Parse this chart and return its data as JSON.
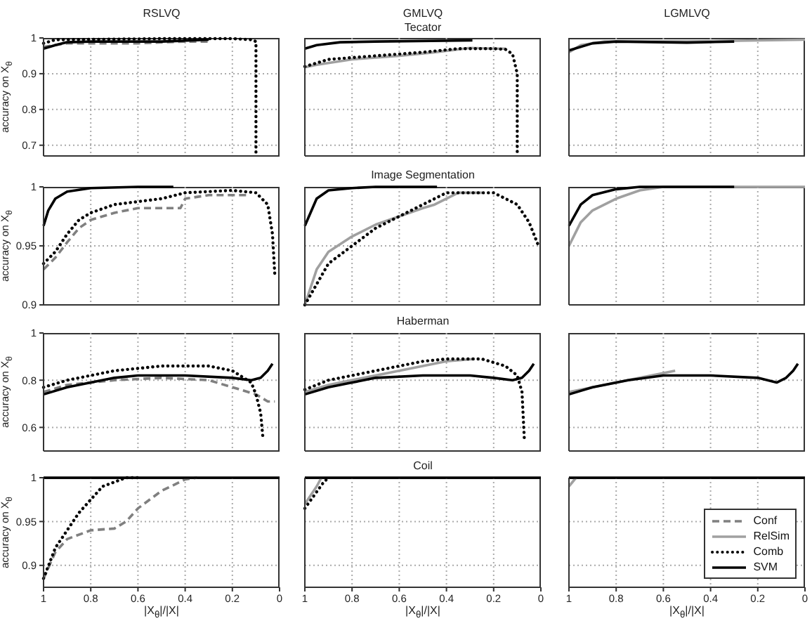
{
  "chart_data": [
    {
      "type": "line",
      "title": "RSLVQ",
      "ylabel": "accuracy on X$_{θ}$",
      "xlim": [
        1,
        0
      ],
      "xticks": [
        1,
        0.8,
        0.6,
        0.4,
        0.2,
        0
      ],
      "ylim": [
        0.67,
        1
      ],
      "yticks": [
        0.7,
        0.8,
        0.9,
        1
      ],
      "grid": true,
      "tick_labels": "y",
      "series": [
        {
          "color": "#808080",
          "line_style": "dashed",
          "x": [
            1,
            0.9,
            0.6,
            0.4,
            0.3
          ],
          "values": [
            0.975,
            0.985,
            0.985,
            0.99,
            0.99
          ]
        },
        {
          "color": "#000000",
          "line_style": "dotted",
          "x": [
            1,
            0.95,
            0.5,
            0.2,
            0.12,
            0.1,
            0.1
          ],
          "values": [
            0.985,
            0.995,
            0.998,
            0.998,
            0.995,
            0.99,
            0.67
          ]
        },
        {
          "color": "#000000",
          "line_style": "solid",
          "x": [
            1,
            0.95,
            0.9,
            0.8,
            0.5,
            0.3
          ],
          "values": [
            0.97,
            0.98,
            0.988,
            0.99,
            0.99,
            0.995
          ]
        }
      ]
    },
    {
      "type": "line",
      "title": "GMLVQ",
      "subtitle": "Tecator",
      "xlim": [
        1,
        0
      ],
      "xticks": [
        1,
        0.8,
        0.6,
        0.4,
        0.2,
        0
      ],
      "ylim": [
        0.67,
        1
      ],
      "yticks": [
        0.7,
        0.8,
        0.9,
        1
      ],
      "grid": true,
      "tick_labels": false,
      "series": [
        {
          "color": "#a0a0a0",
          "line_style": "solid",
          "x": [
            1,
            0.95,
            0.8,
            0.6,
            0.45,
            0.3,
            0.2,
            0.15
          ],
          "values": [
            0.918,
            0.925,
            0.94,
            0.95,
            0.96,
            0.972,
            0.97,
            0.97
          ]
        },
        {
          "color": "#000000",
          "line_style": "dotted",
          "x": [
            1,
            0.9,
            0.7,
            0.5,
            0.35,
            0.2,
            0.15,
            0.12,
            0.1,
            0.1
          ],
          "values": [
            0.92,
            0.94,
            0.95,
            0.96,
            0.97,
            0.97,
            0.968,
            0.955,
            0.9,
            0.67
          ]
        },
        {
          "color": "#000000",
          "line_style": "solid",
          "x": [
            1,
            0.95,
            0.85,
            0.7,
            0.29
          ],
          "values": [
            0.97,
            0.98,
            0.988,
            0.99,
            0.993
          ]
        }
      ]
    },
    {
      "type": "line",
      "title": "LGMLVQ",
      "xlim": [
        1,
        0
      ],
      "xticks": [
        1,
        0.8,
        0.6,
        0.4,
        0.2,
        0
      ],
      "ylim": [
        0.67,
        1
      ],
      "yticks": [
        0.7,
        0.8,
        0.9,
        1
      ],
      "grid": true,
      "tick_labels": false,
      "series": [
        {
          "color": "#a0a0a0",
          "line_style": "solid",
          "x": [
            1,
            0.95,
            0.85,
            0.5,
            0
          ],
          "values": [
            0.96,
            0.98,
            0.99,
            0.99,
            0.995
          ]
        },
        {
          "color": "#000000",
          "line_style": "solid",
          "x": [
            1,
            0.9,
            0.8,
            0.5,
            0.3
          ],
          "values": [
            0.965,
            0.985,
            0.99,
            0.987,
            0.99
          ]
        }
      ]
    },
    {
      "type": "line",
      "ylabel": "accuracy on X$_{θ}$",
      "xlim": [
        1,
        0
      ],
      "xticks": [
        1,
        0.8,
        0.6,
        0.4,
        0.2,
        0
      ],
      "ylim": [
        0.9,
        1
      ],
      "yticks": [
        0.9,
        0.95,
        1
      ],
      "grid": true,
      "tick_labels": "y",
      "series": [
        {
          "color": "#808080",
          "line_style": "dashed",
          "x": [
            1,
            0.95,
            0.9,
            0.85,
            0.8,
            0.7,
            0.6,
            0.42,
            0.4,
            0.3,
            0.14
          ],
          "values": [
            0.93,
            0.94,
            0.953,
            0.965,
            0.972,
            0.978,
            0.982,
            0.982,
            0.99,
            0.993,
            0.993
          ]
        },
        {
          "color": "#000000",
          "line_style": "dotted",
          "x": [
            1,
            0.95,
            0.9,
            0.85,
            0.8,
            0.7,
            0.5,
            0.4,
            0.2,
            0.1,
            0.05,
            0.03,
            0.02
          ],
          "values": [
            0.935,
            0.945,
            0.96,
            0.972,
            0.978,
            0.985,
            0.99,
            0.995,
            0.997,
            0.995,
            0.985,
            0.96,
            0.925
          ]
        },
        {
          "color": "#000000",
          "line_style": "solid",
          "x": [
            1,
            0.98,
            0.95,
            0.9,
            0.8,
            0.6,
            0.45
          ],
          "values": [
            0.967,
            0.98,
            0.99,
            0.996,
            0.999,
            1,
            1
          ]
        }
      ]
    },
    {
      "type": "line",
      "title": "Image Segmentation",
      "xlim": [
        1,
        0
      ],
      "xticks": [
        1,
        0.8,
        0.6,
        0.4,
        0.2,
        0
      ],
      "ylim": [
        0.9,
        1
      ],
      "yticks": [
        0.9,
        0.95,
        1
      ],
      "grid": true,
      "tick_labels": false,
      "series": [
        {
          "color": "#a0a0a0",
          "line_style": "solid",
          "x": [
            1,
            0.95,
            0.9,
            0.8,
            0.7,
            0.6,
            0.5,
            0.45,
            0.35,
            0.25
          ],
          "values": [
            0.9,
            0.93,
            0.945,
            0.958,
            0.968,
            0.975,
            0.982,
            0.985,
            0.995,
            0.995
          ]
        },
        {
          "color": "#000000",
          "line_style": "dotted",
          "x": [
            1,
            0.9,
            0.8,
            0.7,
            0.6,
            0.5,
            0.4,
            0.2,
            0.1,
            0.05,
            0.01
          ],
          "values": [
            0.9,
            0.935,
            0.95,
            0.965,
            0.975,
            0.985,
            0.995,
            0.995,
            0.985,
            0.97,
            0.95
          ]
        },
        {
          "color": "#000000",
          "line_style": "solid",
          "x": [
            1,
            0.95,
            0.9,
            0.8,
            0.7,
            0.44
          ],
          "values": [
            0.967,
            0.99,
            0.997,
            0.999,
            1,
            1
          ]
        }
      ]
    },
    {
      "type": "line",
      "xlim": [
        1,
        0
      ],
      "xticks": [
        1,
        0.8,
        0.6,
        0.4,
        0.2,
        0
      ],
      "ylim": [
        0.9,
        1
      ],
      "yticks": [
        0.9,
        0.95,
        1
      ],
      "grid": true,
      "tick_labels": false,
      "series": [
        {
          "color": "#a0a0a0",
          "line_style": "solid",
          "x": [
            1,
            0.95,
            0.9,
            0.8,
            0.7,
            0.6,
            0
          ],
          "values": [
            0.95,
            0.97,
            0.98,
            0.99,
            0.997,
            1,
            1
          ]
        },
        {
          "color": "#000000",
          "line_style": "solid",
          "x": [
            1,
            0.95,
            0.9,
            0.8,
            0.7,
            0.3
          ],
          "values": [
            0.967,
            0.985,
            0.993,
            0.998,
            1,
            1
          ]
        }
      ]
    },
    {
      "type": "line",
      "ylabel": "accuracy on X$_{θ}$",
      "xlim": [
        1,
        0
      ],
      "xticks": [
        1,
        0.8,
        0.6,
        0.4,
        0.2,
        0
      ],
      "ylim": [
        0.5,
        1
      ],
      "yticks": [
        0.6,
        0.8,
        1
      ],
      "grid": true,
      "tick_labels": "y",
      "series": [
        {
          "color": "#808080",
          "line_style": "dashed",
          "x": [
            1,
            0.9,
            0.7,
            0.5,
            0.3,
            0.2,
            0.1,
            0.05,
            0.02
          ],
          "values": [
            0.75,
            0.78,
            0.8,
            0.81,
            0.8,
            0.77,
            0.74,
            0.71,
            0.71
          ]
        },
        {
          "color": "#000000",
          "line_style": "dotted",
          "x": [
            1,
            0.9,
            0.7,
            0.5,
            0.3,
            0.2,
            0.12,
            0.1,
            0.08,
            0.07
          ],
          "values": [
            0.77,
            0.8,
            0.84,
            0.86,
            0.86,
            0.84,
            0.79,
            0.74,
            0.66,
            0.55
          ]
        },
        {
          "color": "#000000",
          "line_style": "solid",
          "x": [
            1,
            0.9,
            0.8,
            0.7,
            0.6,
            0.4,
            0.2,
            0.12,
            0.08,
            0.05,
            0.03
          ],
          "values": [
            0.74,
            0.77,
            0.79,
            0.81,
            0.82,
            0.82,
            0.81,
            0.8,
            0.81,
            0.84,
            0.87
          ]
        }
      ]
    },
    {
      "type": "line",
      "title": "Haberman",
      "xlim": [
        1,
        0
      ],
      "xticks": [
        1,
        0.8,
        0.6,
        0.4,
        0.2,
        0
      ],
      "ylim": [
        0.5,
        1
      ],
      "yticks": [
        0.6,
        0.8,
        1
      ],
      "grid": true,
      "tick_labels": false,
      "series": [
        {
          "color": "#a0a0a0",
          "line_style": "solid",
          "x": [
            1,
            0.9,
            0.7,
            0.5,
            0.4,
            0.28
          ],
          "values": [
            0.75,
            0.78,
            0.82,
            0.86,
            0.88,
            0.89
          ]
        },
        {
          "color": "#000000",
          "line_style": "dotted",
          "x": [
            1,
            0.9,
            0.7,
            0.5,
            0.4,
            0.25,
            0.15,
            0.1,
            0.08,
            0.07
          ],
          "values": [
            0.76,
            0.8,
            0.84,
            0.88,
            0.89,
            0.89,
            0.86,
            0.82,
            0.75,
            0.55
          ]
        },
        {
          "color": "#000000",
          "line_style": "solid",
          "x": [
            1,
            0.9,
            0.8,
            0.7,
            0.5,
            0.3,
            0.2,
            0.12,
            0.08,
            0.05,
            0.03
          ],
          "values": [
            0.74,
            0.77,
            0.79,
            0.81,
            0.82,
            0.82,
            0.81,
            0.8,
            0.81,
            0.84,
            0.87
          ]
        }
      ]
    },
    {
      "type": "line",
      "xlim": [
        1,
        0
      ],
      "xticks": [
        1,
        0.8,
        0.6,
        0.4,
        0.2,
        0
      ],
      "ylim": [
        0.5,
        1
      ],
      "yticks": [
        0.6,
        0.8,
        1
      ],
      "grid": true,
      "tick_labels": false,
      "series": [
        {
          "color": "#a0a0a0",
          "line_style": "solid",
          "x": [
            1,
            0.85,
            0.7,
            0.55
          ],
          "values": [
            0.75,
            0.78,
            0.81,
            0.84
          ]
        },
        {
          "color": "#000000",
          "line_style": "solid",
          "x": [
            1,
            0.9,
            0.75,
            0.6,
            0.4,
            0.2,
            0.12,
            0.08,
            0.05,
            0.03
          ],
          "values": [
            0.74,
            0.77,
            0.8,
            0.82,
            0.82,
            0.81,
            0.79,
            0.81,
            0.84,
            0.87
          ]
        }
      ]
    },
    {
      "type": "line",
      "ylabel": "accuracy on X$_{θ}$",
      "xlabel": "|X$_{θ}$|/|X|",
      "xlim": [
        1,
        0
      ],
      "xticks": [
        1,
        0.8,
        0.6,
        0.4,
        0.2,
        0
      ],
      "ylim": [
        0.875,
        1
      ],
      "yticks": [
        0.9,
        0.95,
        1
      ],
      "grid": true,
      "series": [
        {
          "color": "#808080",
          "line_style": "dashed",
          "x": [
            1,
            0.95,
            0.9,
            0.8,
            0.7,
            0.65,
            0.6,
            0.5,
            0.4,
            0.35
          ],
          "values": [
            0.885,
            0.915,
            0.93,
            0.94,
            0.942,
            0.95,
            0.965,
            0.985,
            0.998,
            1
          ]
        },
        {
          "color": "#000000",
          "line_style": "dotted",
          "x": [
            1,
            0.95,
            0.9,
            0.85,
            0.8,
            0.75,
            0.65,
            0.6
          ],
          "values": [
            0.885,
            0.92,
            0.94,
            0.96,
            0.975,
            0.99,
            1,
            1
          ]
        },
        {
          "color": "#000000",
          "line_style": "solid",
          "x": [
            1,
            0
          ],
          "values": [
            1,
            1
          ]
        }
      ]
    },
    {
      "type": "line",
      "title": "Coil",
      "xlabel": "|X$_{θ}$|/|X|",
      "xlim": [
        1,
        0
      ],
      "xticks": [
        1,
        0.8,
        0.6,
        0.4,
        0.2,
        0
      ],
      "ylim": [
        0.875,
        1
      ],
      "yticks": [
        0.9,
        0.95,
        1
      ],
      "grid": true,
      "tick_labels": "x",
      "series": [
        {
          "color": "#a0a0a0",
          "line_style": "solid",
          "x": [
            1,
            0.95,
            0.93
          ],
          "values": [
            0.97,
            0.99,
            1
          ]
        },
        {
          "color": "#000000",
          "line_style": "dotted",
          "x": [
            1,
            0.96,
            0.92,
            0.9
          ],
          "values": [
            0.965,
            0.98,
            0.995,
            1
          ]
        },
        {
          "color": "#000000",
          "line_style": "solid",
          "x": [
            1,
            0
          ],
          "values": [
            1,
            1
          ]
        }
      ]
    },
    {
      "type": "line",
      "xlabel": "|X$_{θ}$|/|X|",
      "xlim": [
        1,
        0
      ],
      "xticks": [
        1,
        0.8,
        0.6,
        0.4,
        0.2,
        0
      ],
      "ylim": [
        0.875,
        1
      ],
      "yticks": [
        0.9,
        0.95,
        1
      ],
      "grid": true,
      "tick_labels": "x",
      "legend": "bottom right",
      "series": [
        {
          "name": "Conf",
          "color": "#808080",
          "line_style": "dashed"
        },
        {
          "name": "RelSim",
          "color": "#a0a0a0",
          "line_style": "solid",
          "x": [
            1,
            0.97
          ],
          "values": [
            0.99,
            1
          ]
        },
        {
          "name": "Comb",
          "color": "#000000",
          "line_style": "dotted"
        },
        {
          "name": "SVM",
          "color": "#000000",
          "line_style": "solid",
          "x": [
            1,
            0
          ],
          "values": [
            1,
            1
          ]
        }
      ]
    }
  ]
}
